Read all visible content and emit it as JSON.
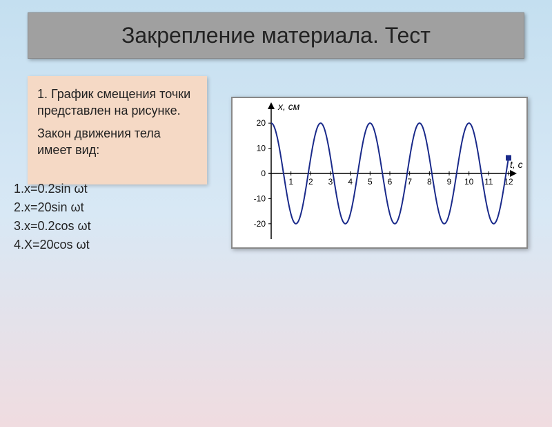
{
  "title": "Закрепление материала.\nТест",
  "question": {
    "label_intro": "1. График смещения точки  представлен на рисунке.",
    "label_law": "Закон движения тела имеет вид:"
  },
  "options": [
    "1.x=0.2sin ωt",
    "2.x=20sin ωt",
    "3.x=0.2cos ωt",
    "4.X=20cos ωt"
  ],
  "chart": {
    "y_label": "x, см",
    "x_label": "t, с",
    "amplitude": 20,
    "period": 2.5,
    "y_ticks": [
      20,
      10,
      0,
      -10,
      -20
    ],
    "x_ticks": [
      1,
      2,
      3,
      4,
      5,
      6,
      7,
      8,
      9,
      10,
      11,
      12
    ],
    "x_max": 12,
    "y_max": 25,
    "curve_color": "#1a2a8a",
    "axis_color": "#000000",
    "axis_fontsize": 14,
    "tick_fontsize": 12,
    "background": "#ffffff",
    "marker_x": 12,
    "marker_color": "#1a2a8a"
  },
  "colors": {
    "title_bg": "#a0a0a0",
    "question_bg": "#f5d9c5",
    "page_gradient_top": "#c4dff0",
    "page_gradient_bottom": "#f0dce0"
  }
}
